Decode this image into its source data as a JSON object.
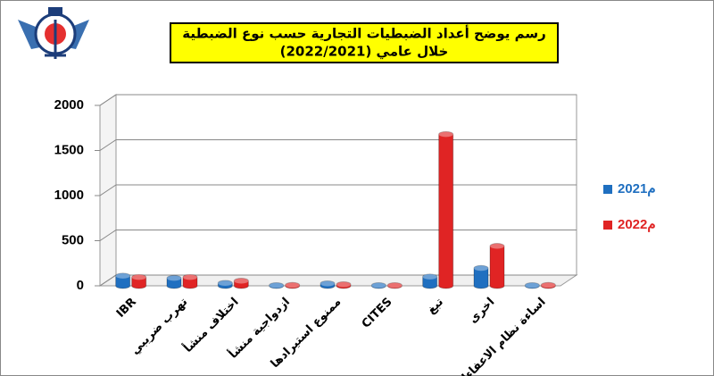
{
  "chart_data": {
    "type": "bar",
    "title": "رسم يوضح أعداد الضبطيات التجارية حسب نوع الضبطية",
    "subtitle": "خلال عامي (2022/2021)",
    "categories": [
      "IBR",
      "تهرب ضريبي",
      "اختلاف منشأ",
      "ازدواجية منشأ",
      "ممنوع استيرادها",
      "CITES",
      "تبغ",
      "اخرى",
      "اساءة نظام الاعفاءات"
    ],
    "series": [
      {
        "name": "2021م",
        "color": "#1f6fc0",
        "values": [
          110,
          85,
          30,
          5,
          25,
          5,
          100,
          195,
          5
        ]
      },
      {
        "name": "2022م",
        "color": "#e02424",
        "values": [
          95,
          95,
          55,
          8,
          15,
          5,
          1680,
          440,
          8
        ]
      }
    ],
    "ylim": [
      0,
      2000
    ],
    "yticks": [
      0,
      500,
      1000,
      1500,
      2000
    ],
    "grid": true,
    "legend": "right"
  }
}
